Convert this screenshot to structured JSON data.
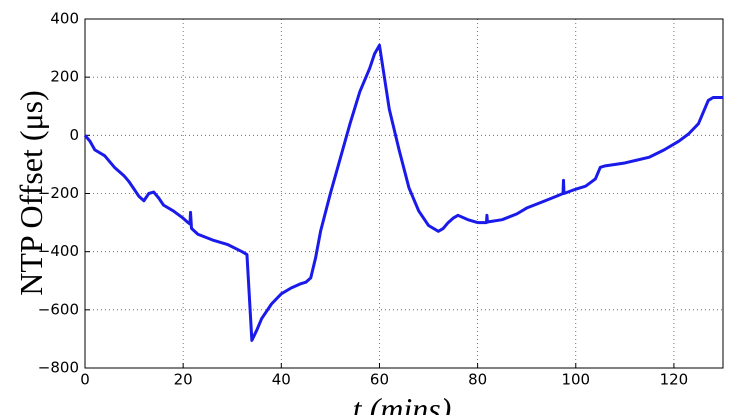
{
  "chart_data": {
    "type": "line",
    "xlabel": "t (mins)",
    "ylabel": "NTP Offset (μs)",
    "color": "#1a1aeb",
    "x": [
      0,
      1,
      2,
      4,
      6,
      8,
      9,
      10,
      11,
      12,
      13,
      14,
      15,
      16,
      18,
      20,
      21,
      21.4,
      21.5,
      21.7,
      23,
      26,
      29,
      32,
      33,
      34,
      35,
      36,
      38,
      40,
      42,
      44,
      45,
      46,
      47,
      48,
      50,
      52,
      54,
      56,
      58,
      59,
      60,
      61,
      62,
      64,
      66,
      68,
      70,
      72,
      73,
      74,
      75,
      76,
      78,
      80,
      81.8,
      81.9,
      82,
      85,
      88,
      90,
      93,
      96,
      97.4,
      97.5,
      97.6,
      100,
      102,
      104,
      105,
      106,
      110,
      115,
      118,
      121,
      123,
      125,
      127,
      128,
      130
    ],
    "values": [
      0,
      -20,
      -50,
      -70,
      -110,
      -140,
      -160,
      -185,
      -210,
      -225,
      -200,
      -195,
      -215,
      -240,
      -260,
      -285,
      -300,
      -305,
      -265,
      -320,
      -340,
      -360,
      -375,
      -400,
      -410,
      -705,
      -670,
      -630,
      -580,
      -545,
      -525,
      -510,
      -505,
      -490,
      -420,
      -330,
      -200,
      -80,
      40,
      150,
      230,
      280,
      310,
      200,
      90,
      -50,
      -180,
      -260,
      -310,
      -330,
      -320,
      -300,
      -285,
      -275,
      -290,
      -300,
      -300,
      -275,
      -298,
      -290,
      -270,
      -250,
      -230,
      -210,
      -200,
      -155,
      -200,
      -185,
      -175,
      -150,
      -110,
      -105,
      -95,
      -75,
      -50,
      -20,
      5,
      40,
      120,
      130,
      130
    ],
    "xlim": [
      0,
      130
    ],
    "ylim": [
      -800,
      400
    ],
    "xticks": [
      0,
      20,
      40,
      60,
      80,
      100,
      120
    ],
    "yticks": [
      {
        "value": -800,
        "label": "−800"
      },
      {
        "value": -600,
        "label": "−600"
      },
      {
        "value": -400,
        "label": "−400"
      },
      {
        "value": -200,
        "label": "−200"
      },
      0,
      200,
      400
    ],
    "grid": true
  }
}
